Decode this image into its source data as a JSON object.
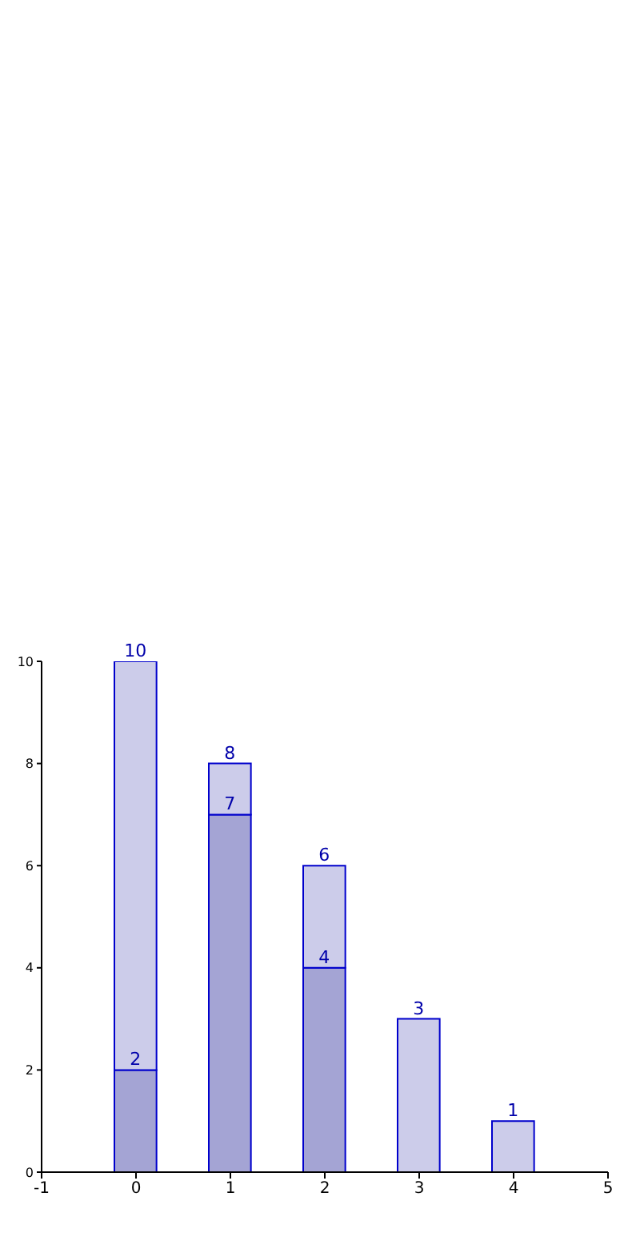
{
  "chart_data": {
    "type": "bar",
    "x": [
      0,
      1,
      2,
      3,
      4
    ],
    "stacked": true,
    "series": [
      {
        "color": "#a4a4d4",
        "values": [
          2,
          7,
          4,
          null,
          null
        ],
        "value_labels": [
          "2",
          "7",
          "4",
          null,
          null
        ]
      },
      {
        "color": "#ccccea",
        "values": [
          8,
          1,
          2,
          3,
          1
        ]
      }
    ],
    "totals": [
      "10",
      "8",
      "6",
      "3",
      "1"
    ],
    "xlim": [
      -1,
      5
    ],
    "xticks": [
      -1,
      0,
      1,
      2,
      3,
      4,
      5
    ],
    "ylim": [
      0,
      10
    ],
    "yticks": [
      0,
      2,
      4,
      6,
      8,
      10
    ],
    "grid": false,
    "legend": false
  }
}
